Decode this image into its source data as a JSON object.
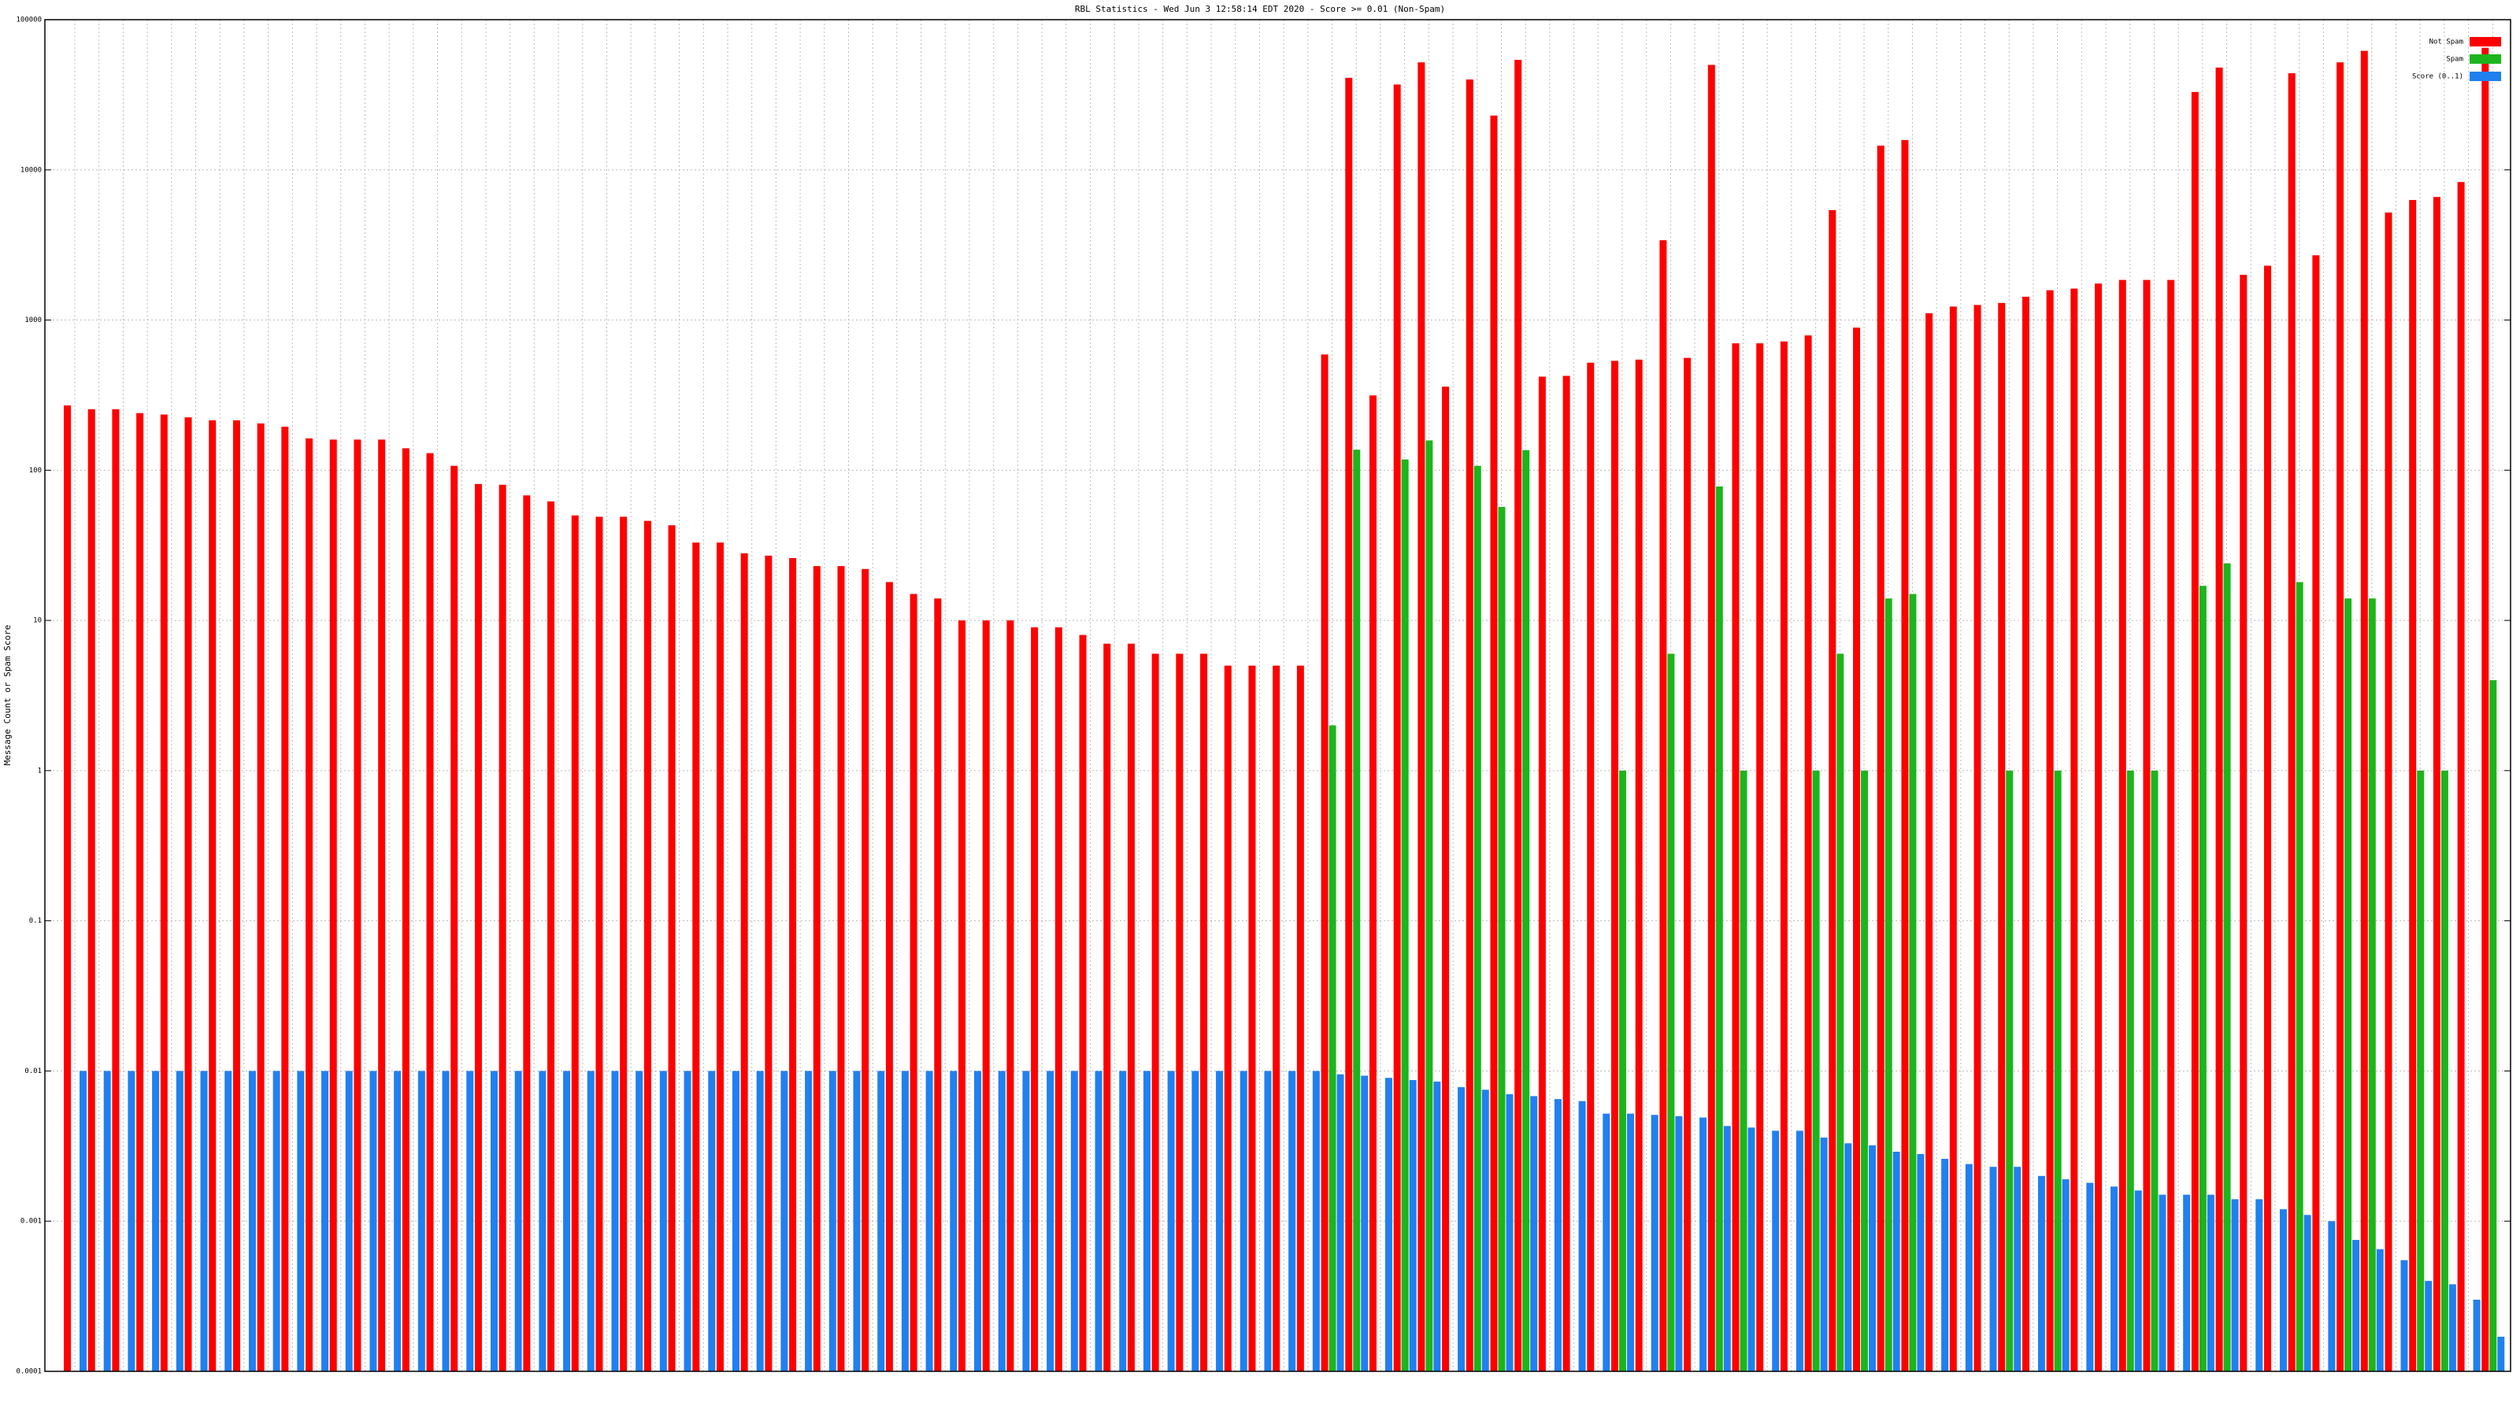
{
  "chart_data": {
    "type": "bar",
    "title": "RBL Statistics - Wed Jun  3 12:58:14 EDT 2020 - Score >= 0.01 (Non-Spam)",
    "y_label": "Message Count or Spam Score",
    "log_scale": true,
    "grid": true,
    "legend": "upper right",
    "ylim": [
      0.0001,
      100000
    ],
    "yticks": [
      0.0001,
      0.001,
      0.01,
      0.1,
      1,
      10,
      100,
      1000,
      10000,
      100000
    ],
    "categories": [
      null,
      null,
      null,
      null,
      null,
      null,
      null,
      null,
      null,
      null,
      null,
      null,
      null,
      null,
      null,
      null,
      null,
      null,
      null,
      null,
      null,
      null,
      null,
      null,
      null,
      null,
      null,
      null,
      null,
      null,
      null,
      null,
      null,
      null,
      null,
      null,
      null,
      null,
      null,
      null,
      null,
      null,
      null,
      null,
      null,
      null,
      null,
      null,
      null,
      null,
      null,
      null,
      null,
      null,
      null,
      null,
      null,
      null,
      null,
      null,
      null,
      null,
      null,
      null,
      null,
      null,
      null,
      null,
      null,
      null,
      null,
      null,
      null,
      null,
      null,
      null,
      null,
      null,
      null,
      null,
      null,
      null,
      null,
      null,
      null,
      null,
      null,
      null,
      null,
      null,
      null,
      null,
      null,
      null,
      null,
      null,
      null,
      null,
      null,
      null,
      null
    ],
    "series": [
      {
        "name": "Not Spam",
        "color": "#ff0000",
        "values": [
          270,
          255,
          255,
          240,
          235,
          225,
          215,
          215,
          205,
          195,
          163,
          160,
          160,
          160,
          140,
          130,
          107,
          81,
          80,
          68,
          62,
          50,
          49,
          49,
          46,
          43,
          33,
          33,
          28,
          27,
          26,
          23,
          23,
          22,
          18,
          15,
          14,
          10,
          10,
          10,
          9,
          9,
          8,
          7,
          7,
          6,
          6,
          6,
          5,
          5,
          5,
          5,
          590,
          41000,
          315,
          37000,
          52000,
          360,
          40000,
          23000,
          54000,
          420,
          425,
          520,
          535,
          545,
          3400,
          560,
          50000,
          700,
          700,
          720,
          790,
          5400,
          890,
          14500,
          15800,
          1110,
          1230,
          1260,
          1300,
          1430,
          1580,
          1620,
          1750,
          1850,
          1850,
          1850,
          33000,
          48000,
          2000,
          2300,
          44000,
          2700,
          52000,
          62000,
          5200,
          6300,
          6600,
          8300,
          65000
        ]
      },
      {
        "name": "Spam",
        "color": "#1cb51c",
        "values": [
          null,
          null,
          null,
          null,
          null,
          null,
          null,
          null,
          null,
          null,
          null,
          null,
          null,
          null,
          null,
          null,
          null,
          null,
          null,
          null,
          null,
          null,
          null,
          null,
          null,
          null,
          null,
          null,
          null,
          null,
          null,
          null,
          null,
          null,
          null,
          null,
          null,
          null,
          null,
          null,
          null,
          null,
          null,
          null,
          null,
          null,
          null,
          null,
          null,
          null,
          null,
          null,
          2,
          137,
          null,
          118,
          158,
          null,
          107,
          57,
          136,
          null,
          null,
          null,
          1,
          null,
          6,
          null,
          78,
          1,
          null,
          null,
          1,
          6,
          1,
          14,
          15,
          null,
          null,
          null,
          1,
          null,
          1,
          null,
          null,
          1,
          1,
          null,
          17,
          24,
          null,
          null,
          18,
          null,
          14,
          14,
          null,
          1,
          1,
          null,
          4
        ]
      },
      {
        "name": "Score (0..1)",
        "color": "#2080f0",
        "values": [
          0.01,
          0.01,
          0.01,
          0.01,
          0.01,
          0.01,
          0.01,
          0.01,
          0.01,
          0.01,
          0.01,
          0.01,
          0.01,
          0.01,
          0.01,
          0.01,
          0.01,
          0.01,
          0.01,
          0.01,
          0.01,
          0.01,
          0.01,
          0.01,
          0.01,
          0.01,
          0.01,
          0.01,
          0.01,
          0.01,
          0.01,
          0.01,
          0.01,
          0.01,
          0.01,
          0.01,
          0.01,
          0.01,
          0.01,
          0.01,
          0.01,
          0.01,
          0.01,
          0.01,
          0.01,
          0.01,
          0.01,
          0.01,
          0.01,
          0.01,
          0.01,
          0.01,
          0.0095,
          0.0093,
          0.009,
          0.0087,
          0.0085,
          0.0078,
          0.0075,
          0.007,
          0.0068,
          0.0065,
          0.0063,
          0.0052,
          0.0052,
          0.0051,
          0.005,
          0.0049,
          0.0043,
          0.0042,
          0.004,
          0.004,
          0.0036,
          0.0033,
          0.0032,
          0.0029,
          0.0028,
          0.0026,
          0.0024,
          0.0023,
          0.0023,
          0.002,
          0.0019,
          0.0018,
          0.0017,
          0.0016,
          0.0015,
          0.0015,
          0.0015,
          0.0014,
          0.0014,
          0.0012,
          0.0011,
          0.001,
          0.00075,
          0.00065,
          0.00055,
          0.0004,
          0.00038,
          0.0003,
          0.00017
        ]
      }
    ]
  }
}
